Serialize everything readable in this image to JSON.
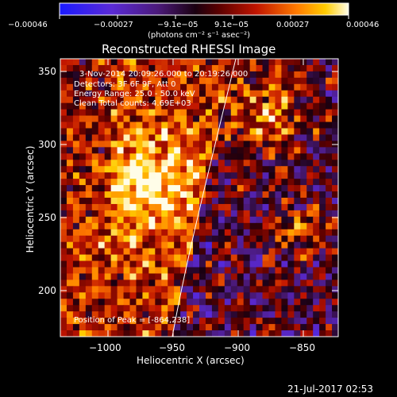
{
  "colorbar": {
    "tick_labels": [
      "−0.00046",
      "−0.00027",
      "−9.1e−05",
      "9.1e−05",
      "0.00027",
      "0.00046"
    ],
    "units_label": "(photons cm⁻² s⁻¹ asec⁻²)"
  },
  "title": "Reconstructed RHESSI Image",
  "annotations": {
    "time_range": "3-Nov-2014 20:09:26.000 to 20:19:26.000",
    "detectors": "Detectors: 3F 6F 9F, Att 0",
    "energy_range": "Energy Range: 25.0 - 50.0 keV",
    "clean_counts": "Clean    Total counts: 4.69E+03",
    "peak_position": "Position of Peak = [-864,238]"
  },
  "axes": {
    "xlabel": "Heliocentric X (arcsec)",
    "ylabel": "Heliocentric Y (arcsec)",
    "x_ticks": [
      "−1000",
      "−950",
      "−900",
      "−850"
    ],
    "y_ticks": [
      "350",
      "300",
      "250",
      "200"
    ]
  },
  "timestamp": "21-Jul-2017 02:53",
  "colors": {
    "background": "#000000",
    "text": "#ffffff",
    "limb_line": "#ffffff"
  }
}
